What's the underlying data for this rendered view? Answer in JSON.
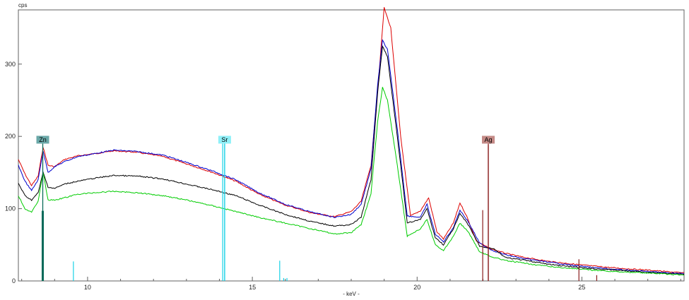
{
  "chart_data": {
    "type": "line",
    "title": "",
    "ylabel": "cps",
    "xlabel": "- keV -",
    "xlim": [
      7.9,
      28.1
    ],
    "ylim": [
      0,
      375
    ],
    "x_ticks": [
      10,
      15,
      20,
      25
    ],
    "y_ticks": [
      0,
      100,
      200,
      300
    ],
    "grid": false,
    "series": [
      {
        "color": "#dd0000",
        "points": [
          [
            7.9,
            168
          ],
          [
            8.1,
            148
          ],
          [
            8.3,
            132
          ],
          [
            8.5,
            145
          ],
          [
            8.65,
            185
          ],
          [
            8.8,
            160
          ],
          [
            9.0,
            158
          ],
          [
            9.3,
            168
          ],
          [
            9.7,
            173
          ],
          [
            10.2,
            176
          ],
          [
            10.8,
            180
          ],
          [
            11.5,
            178
          ],
          [
            12.3,
            172
          ],
          [
            13.0,
            162
          ],
          [
            13.8,
            150
          ],
          [
            14.5,
            138
          ],
          [
            15.2,
            120
          ],
          [
            16.0,
            105
          ],
          [
            16.8,
            94
          ],
          [
            17.5,
            89
          ],
          [
            18.0,
            96
          ],
          [
            18.3,
            110
          ],
          [
            18.6,
            160
          ],
          [
            18.85,
            290
          ],
          [
            19.0,
            378
          ],
          [
            19.2,
            350
          ],
          [
            19.5,
            200
          ],
          [
            19.8,
            90
          ],
          [
            20.1,
            97
          ],
          [
            20.35,
            115
          ],
          [
            20.6,
            68
          ],
          [
            20.8,
            58
          ],
          [
            21.1,
            80
          ],
          [
            21.3,
            108
          ],
          [
            21.5,
            90
          ],
          [
            21.8,
            55
          ],
          [
            22.2,
            45
          ],
          [
            22.7,
            38
          ],
          [
            23.2,
            33
          ],
          [
            24.0,
            27
          ],
          [
            25.0,
            22
          ],
          [
            26.0,
            18
          ],
          [
            27.0,
            15
          ],
          [
            28.1,
            11
          ]
        ]
      },
      {
        "color": "#0000cc",
        "points": [
          [
            7.9,
            160
          ],
          [
            8.1,
            138
          ],
          [
            8.3,
            125
          ],
          [
            8.5,
            140
          ],
          [
            8.65,
            180
          ],
          [
            8.8,
            150
          ],
          [
            9.0,
            158
          ],
          [
            9.3,
            165
          ],
          [
            9.7,
            172
          ],
          [
            10.2,
            176
          ],
          [
            10.8,
            181
          ],
          [
            11.5,
            179
          ],
          [
            12.3,
            174
          ],
          [
            13.0,
            164
          ],
          [
            13.8,
            152
          ],
          [
            14.5,
            140
          ],
          [
            15.2,
            122
          ],
          [
            16.0,
            106
          ],
          [
            16.8,
            95
          ],
          [
            17.5,
            88
          ],
          [
            18.0,
            92
          ],
          [
            18.3,
            106
          ],
          [
            18.6,
            155
          ],
          [
            18.8,
            270
          ],
          [
            18.95,
            333
          ],
          [
            19.1,
            320
          ],
          [
            19.4,
            210
          ],
          [
            19.7,
            90
          ],
          [
            20.1,
            88
          ],
          [
            20.3,
            106
          ],
          [
            20.55,
            65
          ],
          [
            20.8,
            54
          ],
          [
            21.1,
            74
          ],
          [
            21.3,
            98
          ],
          [
            21.55,
            82
          ],
          [
            21.9,
            52
          ],
          [
            22.3,
            42
          ],
          [
            22.7,
            36
          ],
          [
            23.2,
            31
          ],
          [
            24.0,
            26
          ],
          [
            25.0,
            20
          ],
          [
            26.0,
            16
          ],
          [
            27.0,
            13
          ],
          [
            28.1,
            10
          ]
        ]
      },
      {
        "color": "#000000",
        "points": [
          [
            7.9,
            135
          ],
          [
            8.1,
            118
          ],
          [
            8.3,
            112
          ],
          [
            8.5,
            122
          ],
          [
            8.65,
            150
          ],
          [
            8.8,
            130
          ],
          [
            9.0,
            128
          ],
          [
            9.3,
            134
          ],
          [
            9.7,
            138
          ],
          [
            10.2,
            142
          ],
          [
            10.8,
            146
          ],
          [
            11.5,
            145
          ],
          [
            12.3,
            141
          ],
          [
            13.0,
            134
          ],
          [
            13.8,
            126
          ],
          [
            14.5,
            118
          ],
          [
            15.2,
            105
          ],
          [
            16.0,
            92
          ],
          [
            16.8,
            82
          ],
          [
            17.5,
            76
          ],
          [
            18.0,
            78
          ],
          [
            18.3,
            88
          ],
          [
            18.6,
            140
          ],
          [
            18.8,
            260
          ],
          [
            18.95,
            325
          ],
          [
            19.1,
            310
          ],
          [
            19.4,
            200
          ],
          [
            19.7,
            80
          ],
          [
            20.1,
            85
          ],
          [
            20.3,
            100
          ],
          [
            20.55,
            60
          ],
          [
            20.8,
            50
          ],
          [
            21.1,
            72
          ],
          [
            21.3,
            93
          ],
          [
            21.55,
            78
          ],
          [
            21.9,
            48
          ],
          [
            22.3,
            45
          ],
          [
            22.7,
            32
          ],
          [
            23.2,
            29
          ],
          [
            24.0,
            23
          ],
          [
            25.0,
            18
          ],
          [
            26.0,
            15
          ],
          [
            27.0,
            12
          ],
          [
            28.1,
            9
          ]
        ]
      },
      {
        "color": "#00cc00",
        "points": [
          [
            7.9,
            118
          ],
          [
            8.1,
            100
          ],
          [
            8.3,
            95
          ],
          [
            8.5,
            110
          ],
          [
            8.65,
            150
          ],
          [
            8.8,
            112
          ],
          [
            9.0,
            112
          ],
          [
            9.3,
            115
          ],
          [
            9.7,
            120
          ],
          [
            10.2,
            122
          ],
          [
            10.8,
            124
          ],
          [
            11.5,
            122
          ],
          [
            12.3,
            118
          ],
          [
            13.0,
            112
          ],
          [
            13.8,
            104
          ],
          [
            14.5,
            96
          ],
          [
            15.2,
            88
          ],
          [
            16.0,
            80
          ],
          [
            16.8,
            72
          ],
          [
            17.5,
            65
          ],
          [
            18.0,
            67
          ],
          [
            18.3,
            78
          ],
          [
            18.6,
            120
          ],
          [
            18.8,
            220
          ],
          [
            18.95,
            268
          ],
          [
            19.1,
            250
          ],
          [
            19.4,
            160
          ],
          [
            19.7,
            62
          ],
          [
            20.1,
            72
          ],
          [
            20.3,
            85
          ],
          [
            20.55,
            50
          ],
          [
            20.8,
            42
          ],
          [
            21.1,
            62
          ],
          [
            21.3,
            80
          ],
          [
            21.55,
            68
          ],
          [
            21.9,
            40
          ],
          [
            22.3,
            33
          ],
          [
            22.7,
            28
          ],
          [
            23.2,
            25
          ],
          [
            24.0,
            20
          ],
          [
            25.0,
            16
          ],
          [
            26.0,
            13
          ],
          [
            27.0,
            11
          ],
          [
            28.1,
            8
          ]
        ]
      }
    ],
    "element_markers": [
      {
        "label": "Zn",
        "energy": 8.64,
        "box_color": "#6aa8a8",
        "line_color": "#0b6b5a"
      },
      {
        "label": "Sr",
        "energy": 14.16,
        "box_color": "#8ff0f8",
        "line_color": "#19d2e6"
      },
      {
        "label": "Ag",
        "energy": 22.16,
        "box_color": "#c48a86",
        "line_color": "#8a1d1d"
      }
    ],
    "element_lines": [
      {
        "energy": 8.62,
        "height": 97,
        "color": "#0b6b5a"
      },
      {
        "energy": 8.66,
        "height": 97,
        "color": "#0b6b5a"
      },
      {
        "energy": 9.57,
        "height": 27,
        "color": "#19d2e6"
      },
      {
        "energy": 14.1,
        "height": 190,
        "color": "#19d2e6"
      },
      {
        "energy": 14.16,
        "height": 190,
        "color": "#19d2e6"
      },
      {
        "energy": 15.83,
        "height": 28,
        "color": "#19d2e6"
      },
      {
        "energy": 15.95,
        "height": 4,
        "color": "#19d2e6"
      },
      {
        "energy": 16.05,
        "height": 4,
        "color": "#19d2e6"
      },
      {
        "energy": 21.99,
        "height": 98,
        "color": "#8a1d1d"
      },
      {
        "energy": 22.16,
        "height": 188,
        "color": "#8a1d1d"
      },
      {
        "energy": 24.91,
        "height": 30,
        "color": "#8a1d1d"
      },
      {
        "energy": 25.45,
        "height": 8,
        "color": "#8a1d1d"
      }
    ]
  }
}
